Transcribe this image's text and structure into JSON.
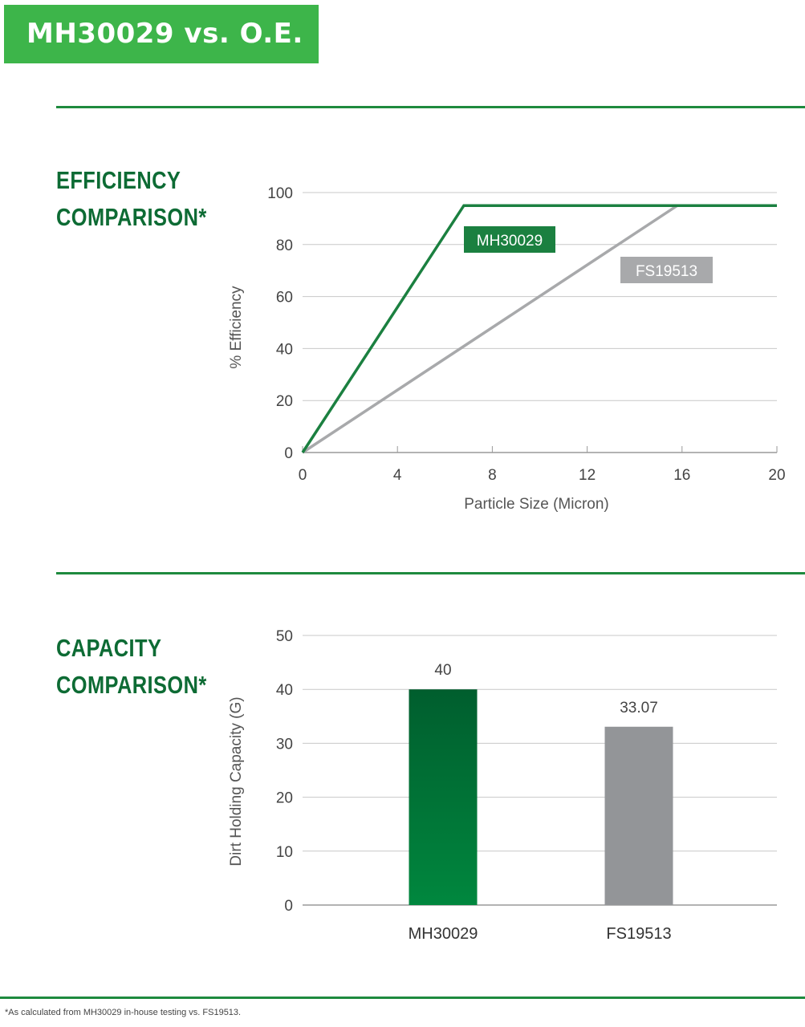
{
  "banner": {
    "title": "MH30029 vs. O.E."
  },
  "sections": {
    "efficiency": {
      "title_line1": "EFFICIENCY",
      "title_line2": "COMPARISON*"
    },
    "capacity": {
      "title_line1": "CAPACITY",
      "title_line2": "COMPARISON*"
    }
  },
  "footnote": "*As calculated from MH30029 in-house testing vs. FS19513.",
  "colors": {
    "brand_green": "#3db54a",
    "dark_green": "#0d6b34",
    "line_green": "#1b8040",
    "gray": "#a8a9ab",
    "bar_gray": "#939598"
  },
  "chart_data": [
    {
      "type": "line",
      "xlabel": "Particle Size (Micron)",
      "ylabel": "% Efficiency",
      "xlim": [
        0,
        20
      ],
      "ylim": [
        0,
        100
      ],
      "x_ticks": [
        0,
        4,
        8,
        12,
        16,
        20
      ],
      "y_ticks": [
        0,
        20,
        40,
        60,
        80,
        100
      ],
      "grid": "horizontal",
      "series": [
        {
          "name": "MH30029",
          "color": "#1b8040",
          "points": [
            [
              0,
              0
            ],
            [
              6.8,
              95
            ],
            [
              20,
              95
            ]
          ]
        },
        {
          "name": "FS19513",
          "color": "#a8a9ab",
          "points": [
            [
              0,
              0
            ],
            [
              15.8,
              95
            ],
            [
              20,
              95
            ]
          ]
        }
      ]
    },
    {
      "type": "bar",
      "ylabel": "Dirt Holding Capacity (G)",
      "ylim": [
        0,
        50
      ],
      "y_ticks": [
        0,
        10,
        20,
        30,
        40,
        50
      ],
      "grid": "horizontal",
      "categories": [
        "MH30029",
        "FS19513"
      ],
      "values": [
        40,
        33.07
      ],
      "value_labels": [
        "40",
        "33.07"
      ],
      "colors": [
        "#00873e",
        "#939598"
      ]
    }
  ]
}
